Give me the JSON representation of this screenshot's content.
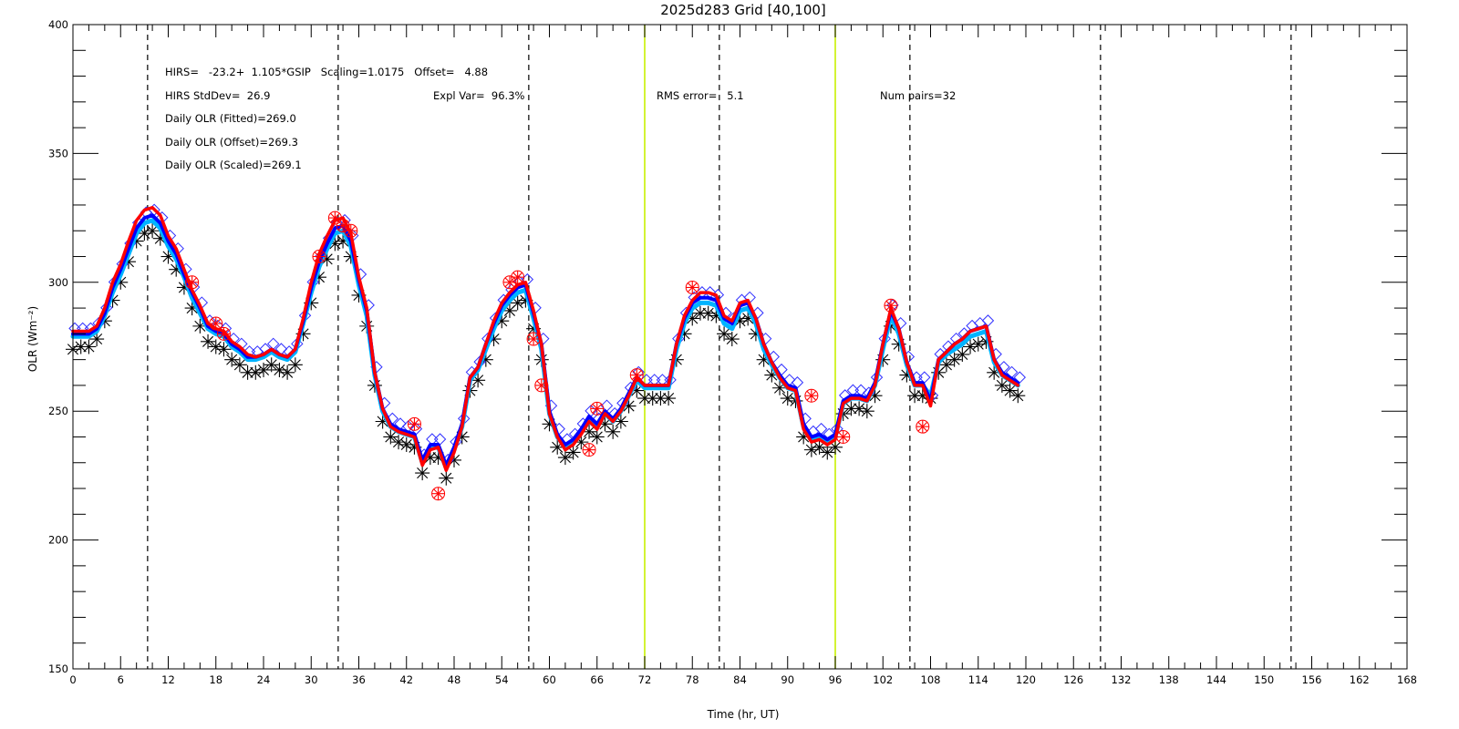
{
  "chart_data": {
    "type": "line",
    "title": "2025d283  Grid [40,100]",
    "xlabel": "Time (hr, UT)",
    "ylabel": "OLR (Wm⁻²)",
    "xlim": [
      0,
      168
    ],
    "ylim": [
      150,
      400
    ],
    "xticks": [
      0,
      6,
      12,
      18,
      24,
      30,
      36,
      42,
      48,
      54,
      60,
      66,
      72,
      78,
      84,
      90,
      96,
      102,
      108,
      114,
      120,
      126,
      132,
      138,
      144,
      150,
      156,
      162,
      168
    ],
    "yticks": [
      150,
      200,
      250,
      300,
      350,
      400
    ],
    "x_minor_step": 2,
    "y_minor_step": 10,
    "grid": false,
    "vlines_dashed": [
      9.4,
      33.4,
      57.4,
      81.4,
      105.4,
      129.4,
      153.4
    ],
    "vlines_day": [
      72,
      96
    ],
    "colors": {
      "black_series": "#000000",
      "light_blue_series": "#00b4ff",
      "blue_series": "#0000ff",
      "red_series": "#ff0000",
      "diamond_marker": "#3030ff",
      "day_marker": "#c8f000"
    },
    "annotations": [
      "HIRS=   -23.2+  1.105*GSIP   Scaling=1.0175   Offset=   4.88",
      "HIRS StdDev=  26.9",
      "Expl Var=  96.3%",
      "RMS error=   5.1",
      "Num pairs=32",
      "Daily OLR (Fitted)=269.0",
      "Daily OLR (Offset)=269.3",
      "Daily OLR (Scaled)=269.1"
    ],
    "x": [
      0,
      1,
      2,
      3,
      4,
      5,
      6,
      7,
      8,
      9,
      10,
      11,
      12,
      13,
      14,
      15,
      16,
      17,
      18,
      19,
      20,
      21,
      22,
      23,
      24,
      25,
      26,
      27,
      28,
      29,
      30,
      31,
      32,
      33,
      34,
      35,
      36,
      37,
      38,
      39,
      40,
      41,
      42,
      43,
      44,
      45,
      46,
      47,
      48,
      49,
      50,
      51,
      52,
      53,
      54,
      55,
      56,
      57,
      58,
      59,
      60,
      61,
      62,
      63,
      64,
      65,
      66,
      67,
      68,
      69,
      70,
      71,
      72,
      73,
      74,
      75,
      76,
      77,
      78,
      79,
      80,
      81,
      82,
      83,
      84,
      85,
      86,
      87,
      88,
      89,
      90,
      91,
      92,
      93,
      94,
      95,
      96,
      97,
      98,
      99,
      100,
      101,
      102,
      103,
      104,
      105,
      106,
      107,
      108,
      109,
      110,
      111,
      112,
      113,
      114,
      115,
      116,
      117,
      118,
      119
    ],
    "series": [
      {
        "key": "gsip",
        "values": [
          274,
          275,
          275,
          278,
          285,
          293,
          300,
          308,
          316,
          319,
          320,
          317,
          310,
          305,
          298,
          290,
          283,
          277,
          275,
          274,
          270,
          268,
          265,
          265,
          266,
          268,
          266,
          265,
          268,
          280,
          292,
          302,
          309,
          315,
          316,
          310,
          295,
          283,
          260,
          246,
          240,
          238,
          237,
          236,
          226,
          232,
          232,
          224,
          231,
          240,
          258,
          262,
          270,
          278,
          285,
          289,
          292,
          293,
          282,
          270,
          245,
          236,
          232,
          234,
          238,
          242,
          240,
          245,
          242,
          246,
          252,
          258,
          255,
          255,
          255,
          255,
          270,
          280,
          286,
          288,
          288,
          287,
          280,
          278,
          285,
          286,
          280,
          270,
          264,
          259,
          255,
          254,
          240,
          235,
          236,
          234,
          236,
          249,
          251,
          251,
          250,
          256,
          270,
          283,
          276,
          264,
          256,
          256,
          255,
          265,
          268,
          270,
          272,
          275,
          276,
          277,
          265,
          260,
          258,
          256
        ]
      },
      {
        "key": "fitted",
        "values": [
          279,
          279,
          279,
          281,
          287,
          296,
          303,
          311,
          319,
          323,
          324,
          321,
          314,
          309,
          302,
          294,
          288,
          282,
          280,
          279,
          275,
          273,
          270,
          270,
          271,
          273,
          271,
          270,
          273,
          284,
          296,
          306,
          313,
          319,
          320,
          314,
          299,
          287,
          264,
          250,
          244,
          242,
          241,
          240,
          230,
          236,
          236,
          228,
          235,
          244,
          262,
          266,
          274,
          282,
          289,
          293,
          296,
          297,
          286,
          274,
          249,
          240,
          236,
          238,
          242,
          246,
          244,
          249,
          246,
          250,
          256,
          262,
          259,
          259,
          259,
          259,
          274,
          284,
          290,
          292,
          292,
          291,
          284,
          282,
          289,
          290,
          284,
          274,
          268,
          263,
          259,
          258,
          244,
          239,
          240,
          238,
          240,
          253,
          255,
          255,
          254,
          260,
          274,
          287,
          280,
          268,
          260,
          260,
          256,
          269,
          272,
          274,
          276,
          279,
          280,
          281,
          269,
          264,
          262,
          260
        ]
      },
      {
        "key": "offset",
        "values": [
          280,
          280,
          280,
          282,
          288,
          298,
          305,
          313,
          321,
          325,
          326,
          323,
          316,
          311,
          303,
          296,
          290,
          283,
          281,
          280,
          276,
          274,
          271,
          271,
          272,
          274,
          272,
          271,
          274,
          285,
          298,
          308,
          315,
          321,
          322,
          316,
          301,
          289,
          265,
          251,
          245,
          243,
          242,
          241,
          231,
          237,
          237,
          229,
          236,
          245,
          263,
          267,
          276,
          284,
          291,
          295,
          298,
          299,
          288,
          276,
          250,
          241,
          237,
          239,
          243,
          248,
          245,
          250,
          247,
          251,
          257,
          263,
          260,
          260,
          260,
          260,
          276,
          286,
          292,
          294,
          294,
          293,
          286,
          284,
          291,
          292,
          286,
          276,
          269,
          264,
          260,
          259,
          245,
          240,
          241,
          239,
          241,
          254,
          256,
          256,
          255,
          261,
          276,
          289,
          282,
          269,
          261,
          261,
          254,
          270,
          273,
          276,
          278,
          281,
          282,
          283,
          270,
          265,
          263,
          261
        ]
      },
      {
        "key": "scaled",
        "values": [
          281,
          281,
          281,
          283,
          290,
          300,
          307,
          316,
          324,
          328,
          329,
          326,
          318,
          313,
          305,
          297,
          291,
          284,
          282,
          281,
          277,
          275,
          272,
          271,
          272,
          274,
          272,
          271,
          274,
          286,
          300,
          311,
          318,
          324,
          325,
          319,
          302,
          290,
          265,
          251,
          244,
          242,
          241,
          240,
          229,
          235,
          236,
          227,
          234,
          244,
          263,
          267,
          276,
          285,
          292,
          296,
          299,
          300,
          289,
          276,
          249,
          240,
          235,
          237,
          241,
          246,
          243,
          249,
          246,
          250,
          256,
          263,
          260,
          260,
          260,
          260,
          276,
          287,
          293,
          296,
          296,
          295,
          287,
          285,
          292,
          293,
          286,
          276,
          269,
          263,
          259,
          258,
          243,
          238,
          239,
          237,
          239,
          253,
          255,
          255,
          254,
          260,
          276,
          290,
          282,
          269,
          260,
          260,
          252,
          270,
          273,
          276,
          278,
          281,
          282,
          283,
          270,
          264,
          262,
          260
        ]
      }
    ],
    "obs_x": [
      15,
      18,
      19,
      31,
      33,
      34,
      35,
      43,
      46,
      55,
      56,
      58,
      59,
      65,
      66,
      71,
      78,
      93,
      97,
      103,
      107
    ],
    "obs_y": [
      300,
      284,
      280,
      310,
      325,
      322,
      320,
      245,
      218,
      300,
      302,
      278,
      260,
      235,
      251,
      264,
      298,
      256,
      240,
      291,
      244
    ]
  }
}
